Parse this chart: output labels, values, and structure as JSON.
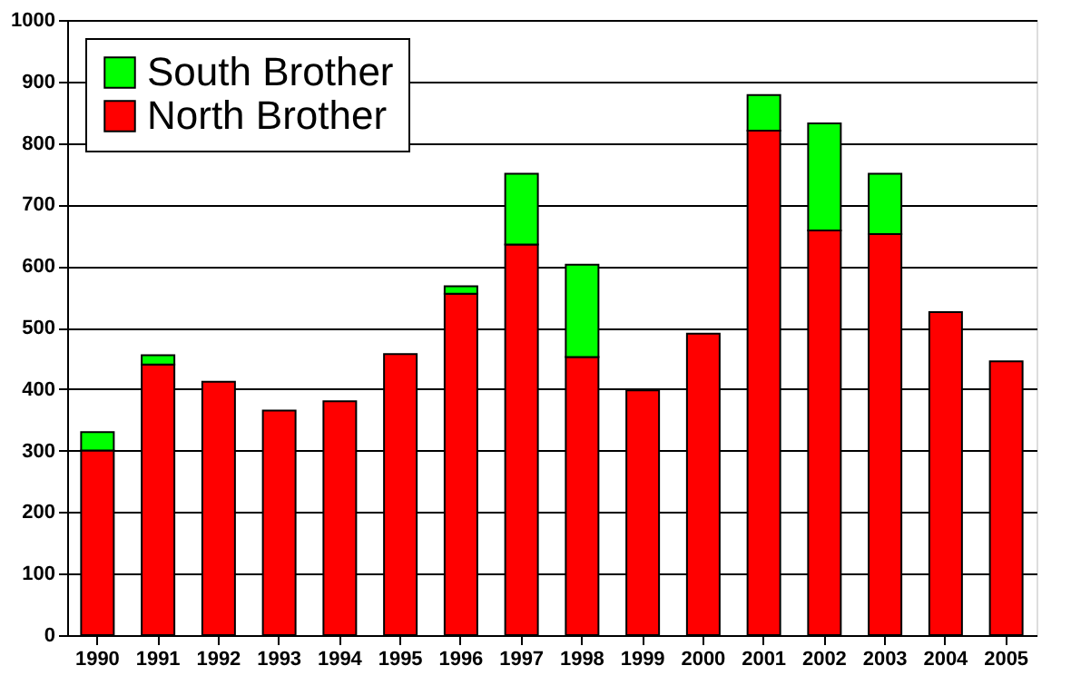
{
  "chart_data": {
    "type": "bar",
    "stacked": true,
    "categories": [
      "1990",
      "1991",
      "1992",
      "1993",
      "1994",
      "1995",
      "1996",
      "1997",
      "1998",
      "1999",
      "2000",
      "2001",
      "2002",
      "2003",
      "2004",
      "2005"
    ],
    "series": [
      {
        "name": "North Brother",
        "color": "#ff0000",
        "values": [
          300,
          440,
          412,
          365,
          380,
          457,
          555,
          635,
          452,
          398,
          490,
          820,
          658,
          652,
          525,
          445
        ]
      },
      {
        "name": "South Brother",
        "color": "#00ff00",
        "values": [
          30,
          15,
          null,
          null,
          null,
          null,
          12,
          115,
          150,
          null,
          null,
          58,
          174,
          98,
          null,
          null
        ]
      }
    ],
    "ylim": [
      0,
      1000
    ],
    "yticks": [
      0,
      100,
      200,
      300,
      400,
      500,
      600,
      700,
      800,
      900,
      1000
    ],
    "grid": "y",
    "legend": "top left"
  }
}
